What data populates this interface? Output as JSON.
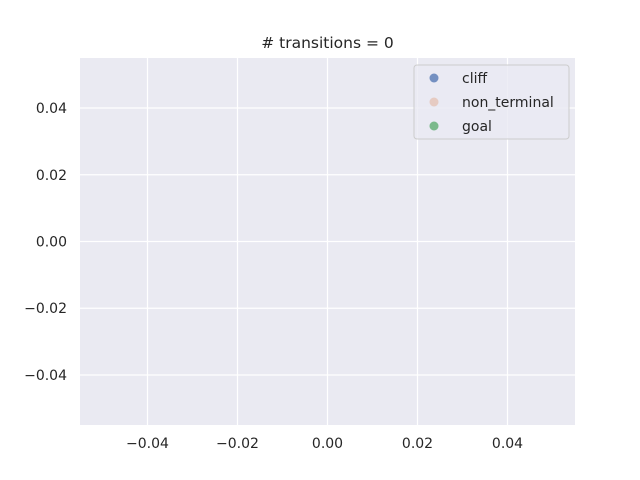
{
  "chart_data": {
    "type": "scatter",
    "title": "# transitions = 0",
    "xlabel": "",
    "ylabel": "",
    "xlim": [
      -0.055,
      0.055
    ],
    "ylim": [
      -0.055,
      0.055
    ],
    "x_ticks": [
      -0.04,
      -0.02,
      0.0,
      0.02,
      0.04
    ],
    "x_tick_labels": [
      "−0.04",
      "−0.02",
      "0.00",
      "0.02",
      "0.04"
    ],
    "y_ticks": [
      -0.04,
      -0.02,
      0.0,
      0.02,
      0.04
    ],
    "y_tick_labels": [
      "−0.04",
      "−0.02",
      "0.00",
      "0.02",
      "0.04"
    ],
    "grid": true,
    "legend_position": "top-right",
    "series": [
      {
        "name": "cliff",
        "color": "#4c72b0",
        "x": [],
        "y": []
      },
      {
        "name": "non_terminal",
        "color": "#dd8452",
        "x": [],
        "y": []
      },
      {
        "name": "goal",
        "color": "#55a868",
        "x": [],
        "y": []
      }
    ],
    "colors": {
      "background": "#eaeaf2",
      "grid": "#ffffff"
    }
  }
}
